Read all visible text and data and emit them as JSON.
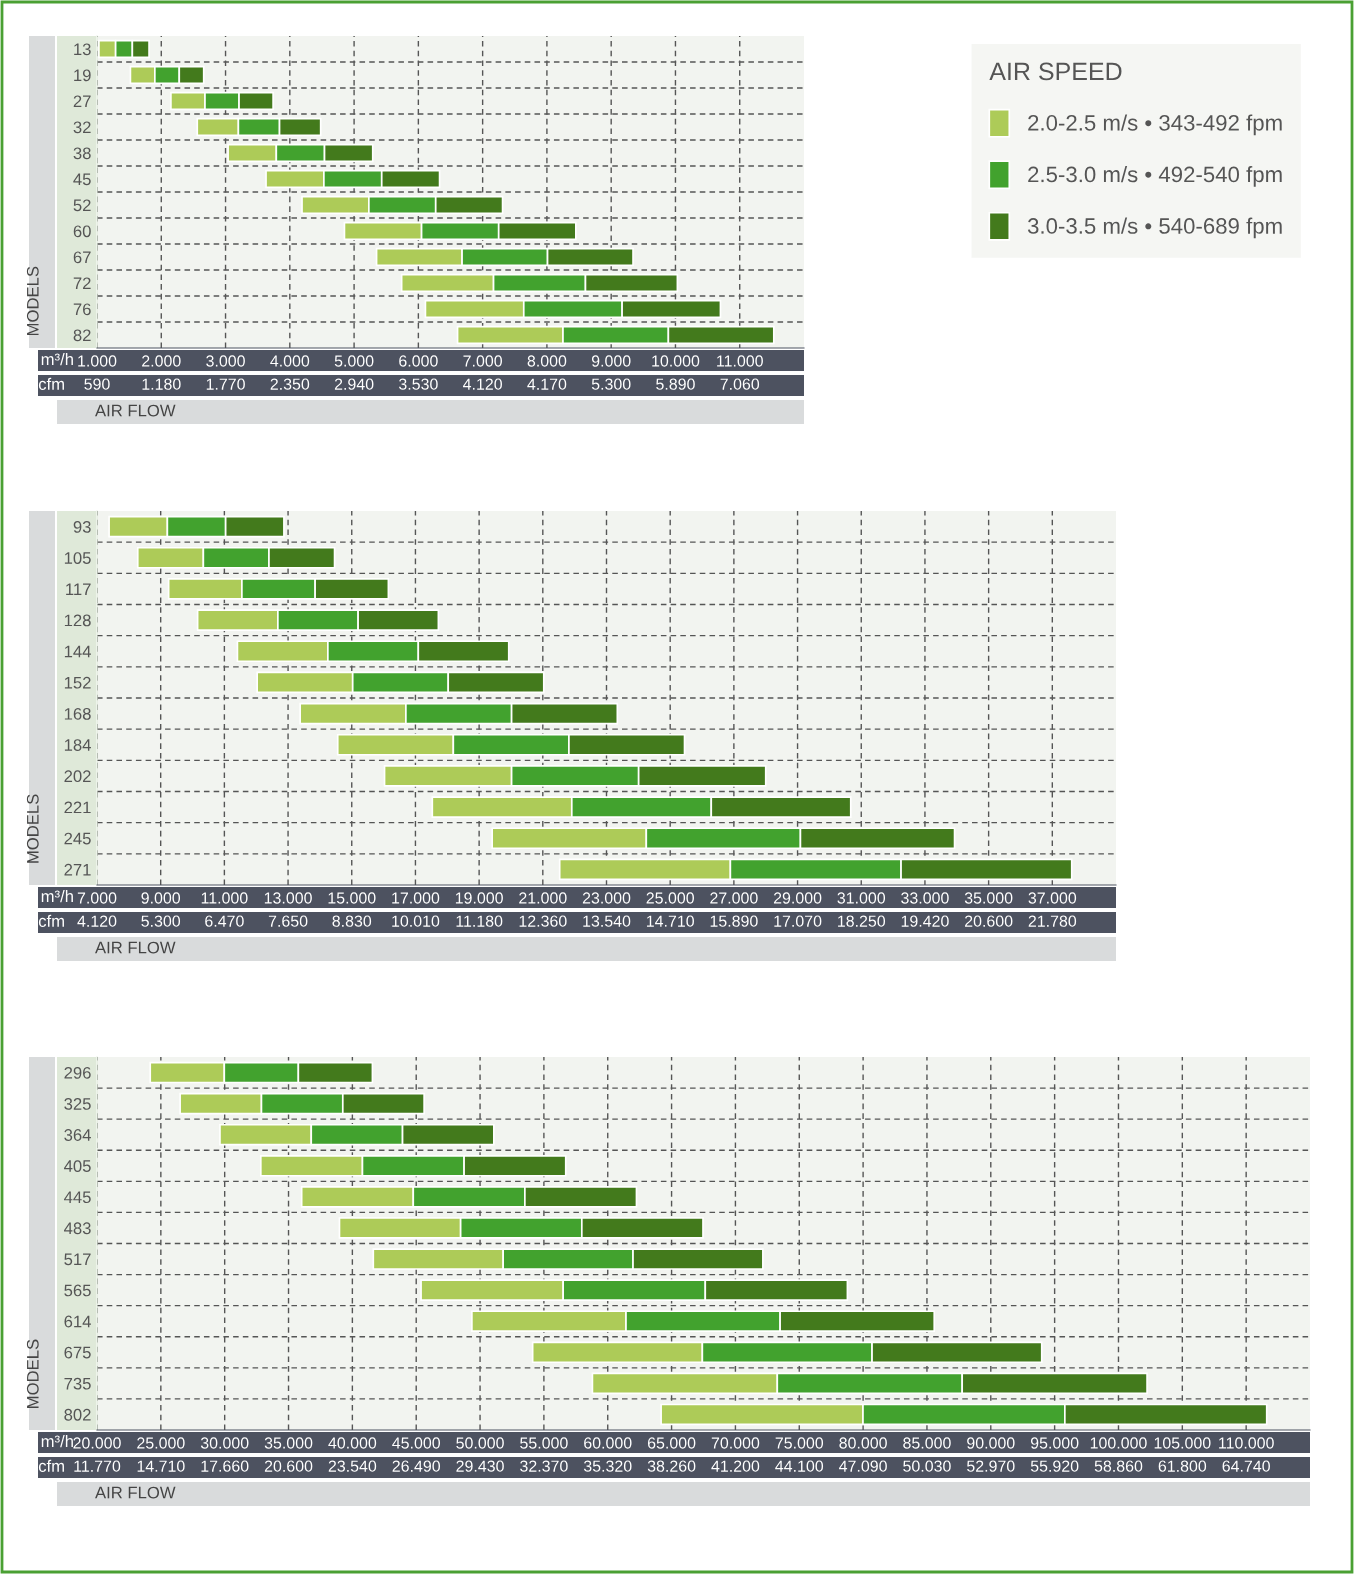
{
  "chart_data": [
    {
      "type": "bar",
      "orientation": "horizontal",
      "xlabel": "m³/h",
      "ylabel": "MODELS",
      "legend_title": "AIR SPEED",
      "legend": "top right",
      "grid": true,
      "annotations": [
        "AIR FLOW",
        "cfm",
        "590",
        "1.180",
        "1.770",
        "2.350",
        "2.940",
        "3.530",
        "4.120",
        "4.170",
        "5.300",
        "5.890",
        "7.060"
      ],
      "categories": [
        "13",
        "19",
        "27",
        "32",
        "38",
        "45",
        "52",
        "60",
        "67",
        "72",
        "76",
        "82"
      ],
      "series": [
        {
          "name": "2.0-2.5 m/s • 343-492 fpm",
          "color": "#adcb58",
          "base": [
            1.03,
            1.52,
            2.15,
            2.56,
            3.04,
            3.63,
            4.19,
            4.85,
            5.35,
            5.74,
            6.11,
            6.61
          ],
          "values": [
            0.26,
            0.38,
            0.53,
            0.64,
            0.75,
            0.9,
            1.04,
            1.2,
            1.33,
            1.43,
            1.53,
            1.64
          ]
        },
        {
          "name": "2.5-3.0 m/s • 492-540 fpm",
          "color": "#42a22e",
          "base": [
            1.29,
            1.9,
            2.68,
            3.2,
            3.79,
            4.53,
            5.23,
            6.05,
            6.68,
            7.17,
            7.64,
            8.25
          ],
          "values": [
            0.26,
            0.38,
            0.53,
            0.64,
            0.75,
            0.9,
            1.04,
            1.2,
            1.33,
            1.43,
            1.53,
            1.64
          ]
        },
        {
          "name": "3.0-3.5 m/s • 540-689 fpm",
          "color": "#437a1c",
          "base": [
            1.55,
            2.28,
            3.21,
            3.84,
            4.54,
            5.43,
            6.27,
            7.25,
            8.01,
            8.6,
            9.17,
            9.89
          ],
          "values": [
            0.26,
            0.38,
            0.53,
            0.64,
            0.75,
            0.9,
            1.04,
            1.2,
            1.33,
            1.43,
            1.53,
            1.64
          ]
        }
      ],
      "xlim": [
        1,
        12
      ],
      "xticks": [
        {
          "value": 1,
          "label": "1.000"
        },
        {
          "value": 2,
          "label": "2.000"
        },
        {
          "value": 3,
          "label": "3.000"
        },
        {
          "value": 4,
          "label": "4.000"
        },
        {
          "value": 5,
          "label": "5.000"
        },
        {
          "value": 6,
          "label": "6.000"
        },
        {
          "value": 7,
          "label": "7.000"
        },
        {
          "value": 8,
          "label": "8.000"
        },
        {
          "value": 9,
          "label": "9.000"
        },
        {
          "value": 10,
          "label": "10.000"
        },
        {
          "value": 11,
          "label": "11.000"
        }
      ]
    },
    {
      "type": "bar",
      "orientation": "horizontal",
      "xlabel": "m³/h",
      "ylabel": "MODELS",
      "grid": true,
      "annotations": [
        "AIR FLOW",
        "cfm",
        "4.120",
        "5.300",
        "6.470",
        "7.650",
        "8.830",
        "10.010",
        "11.180",
        "12.360",
        "13.540",
        "14.710",
        "15.890",
        "17.070",
        "18.250",
        "19.420",
        "20.600",
        "21.780"
      ],
      "categories": [
        "93",
        "105",
        "117",
        "128",
        "144",
        "152",
        "168",
        "184",
        "202",
        "221",
        "245",
        "271"
      ],
      "series": [
        {
          "color": "#adcb58",
          "base": [
            7.38,
            8.28,
            9.25,
            10.16,
            11.41,
            12.03,
            13.38,
            14.56,
            16.03,
            17.53,
            19.41,
            21.53
          ],
          "values": [
            1.83,
            2.06,
            2.3,
            2.52,
            2.84,
            3.0,
            3.32,
            3.63,
            3.99,
            4.38,
            4.84,
            5.36
          ]
        },
        {
          "color": "#42a22e",
          "base": [
            9.21,
            10.34,
            11.55,
            12.68,
            14.25,
            15.03,
            16.7,
            18.19,
            20.02,
            21.91,
            24.25,
            26.89
          ],
          "values": [
            1.83,
            2.06,
            2.3,
            2.52,
            2.84,
            3.0,
            3.32,
            3.63,
            3.99,
            4.38,
            4.84,
            5.36
          ]
        },
        {
          "color": "#437a1c",
          "base": [
            11.04,
            12.4,
            13.85,
            15.2,
            17.09,
            18.03,
            20.02,
            21.82,
            24.01,
            26.29,
            29.09,
            32.25
          ],
          "values": [
            1.83,
            2.06,
            2.3,
            2.52,
            2.84,
            3.0,
            3.32,
            3.63,
            3.99,
            4.38,
            4.84,
            5.36
          ]
        }
      ],
      "xlim": [
        7,
        39
      ],
      "xticks": [
        {
          "value": 7,
          "label": "7.000"
        },
        {
          "value": 9,
          "label": "9.000"
        },
        {
          "value": 11,
          "label": "11.000"
        },
        {
          "value": 13,
          "label": "13.000"
        },
        {
          "value": 15,
          "label": "15.000"
        },
        {
          "value": 17,
          "label": "17.000"
        },
        {
          "value": 19,
          "label": "19.000"
        },
        {
          "value": 21,
          "label": "21.000"
        },
        {
          "value": 23,
          "label": "23.000"
        },
        {
          "value": 25,
          "label": "25.000"
        },
        {
          "value": 27,
          "label": "27.000"
        },
        {
          "value": 29,
          "label": "29.000"
        },
        {
          "value": 31,
          "label": "31.000"
        },
        {
          "value": 33,
          "label": "33.000"
        },
        {
          "value": 35,
          "label": "35.000"
        },
        {
          "value": 37,
          "label": "37.000"
        }
      ]
    },
    {
      "type": "bar",
      "orientation": "horizontal",
      "xlabel": "m³/h",
      "ylabel": "MODELS",
      "grid": true,
      "annotations": [
        "AIR FLOW",
        "cfm",
        "11.770",
        "14.710",
        "17.660",
        "20.600",
        "23.540",
        "26.490",
        "29.430",
        "32.370",
        "35.320",
        "38.260",
        "41.200",
        "44.100",
        "47.090",
        "50.030",
        "52.970",
        "55.920",
        "58.860",
        "61.800",
        "64.740"
      ],
      "categories": [
        "296",
        "325",
        "364",
        "405",
        "445",
        "483",
        "517",
        "565",
        "614",
        "675",
        "735",
        "802"
      ],
      "series": [
        {
          "color": "#adcb58",
          "base": [
            24.17,
            26.51,
            29.63,
            32.83,
            36.03,
            38.99,
            41.64,
            45.38,
            49.36,
            54.12,
            58.8,
            64.18
          ],
          "values": [
            5.8,
            6.37,
            7.15,
            7.96,
            8.74,
            9.49,
            10.17,
            11.13,
            12.07,
            13.29,
            14.48,
            15.81
          ]
        },
        {
          "color": "#42a22e",
          "base": [
            29.97,
            32.88,
            36.78,
            40.79,
            44.77,
            48.48,
            51.81,
            56.51,
            61.43,
            67.41,
            73.28,
            79.99
          ],
          "values": [
            5.8,
            6.37,
            7.15,
            7.96,
            8.74,
            9.49,
            10.17,
            11.13,
            12.07,
            13.29,
            14.48,
            15.81
          ]
        },
        {
          "color": "#437a1c",
          "base": [
            35.77,
            39.25,
            43.93,
            48.75,
            53.51,
            57.97,
            61.98,
            67.64,
            73.5,
            80.7,
            87.76,
            95.8
          ],
          "values": [
            5.8,
            6.37,
            7.15,
            7.96,
            8.74,
            9.49,
            10.17,
            11.13,
            12.07,
            13.29,
            14.48,
            15.81
          ]
        }
      ],
      "xlim": [
        20,
        115
      ],
      "xticks": [
        {
          "value": 20,
          "label": "20.000"
        },
        {
          "value": 25,
          "label": "25.000"
        },
        {
          "value": 30,
          "label": "30.000"
        },
        {
          "value": 35,
          "label": "35.000"
        },
        {
          "value": 40,
          "label": "40.000"
        },
        {
          "value": 45,
          "label": "45.000"
        },
        {
          "value": 50,
          "label": "50.000"
        },
        {
          "value": 55,
          "label": "55.000"
        },
        {
          "value": 60,
          "label": "60.000"
        },
        {
          "value": 65,
          "label": "65.000"
        },
        {
          "value": 70,
          "label": "70.000"
        },
        {
          "value": 75,
          "label": "75.000"
        },
        {
          "value": 80,
          "label": "80.000"
        },
        {
          "value": 85,
          "label": "85.000"
        },
        {
          "value": 90,
          "label": "90.000"
        },
        {
          "value": 95,
          "label": "95.000"
        },
        {
          "value": 100,
          "label": "100.000"
        },
        {
          "value": 105,
          "label": "105.000"
        },
        {
          "value": 110,
          "label": "110.000"
        }
      ]
    }
  ]
}
